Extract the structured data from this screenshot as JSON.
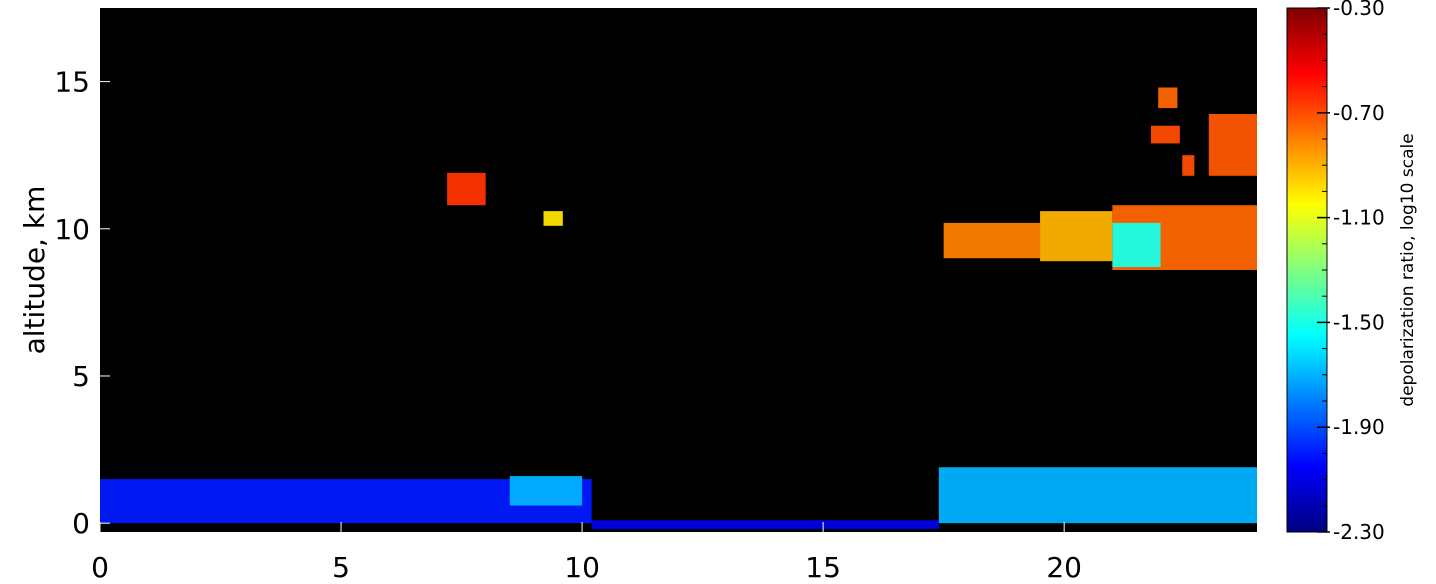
{
  "chart_data": {
    "type": "heatmap",
    "title": "",
    "xlabel": "",
    "ylabel": "altitude, km",
    "xlim": [
      0,
      24
    ],
    "ylim": [
      -0.3,
      17.5
    ],
    "x_ticks": [
      0,
      5,
      10,
      15,
      20
    ],
    "y_ticks": [
      0,
      5,
      10,
      15
    ],
    "background_color": "#000000",
    "colorbar": {
      "label": "depolarization ratio, log10 scale",
      "range": [
        -2.3,
        -0.3
      ],
      "ticks": [
        "-0.30",
        "-0.70",
        "-1.10",
        "-1.50",
        "-1.90",
        "-2.30"
      ],
      "tick_values": [
        -0.3,
        -0.7,
        -1.1,
        -1.5,
        -1.9,
        -2.3
      ],
      "colormap": "jet"
    },
    "features": [
      {
        "name": "boundary layer 0-10 h",
        "x": [
          0,
          10.2
        ],
        "y": [
          0,
          1.5
        ],
        "value": -2.0
      },
      {
        "name": "aerosol lump 8.5-10 h",
        "x": [
          8.5,
          10.0
        ],
        "y": [
          0.6,
          1.6
        ],
        "value": -1.7
      },
      {
        "name": "surface layer 10-17.4 h",
        "x": [
          10.2,
          17.4
        ],
        "y": [
          -0.2,
          0.1
        ],
        "value": -2.1
      },
      {
        "name": "boundary layer 17.4-24 h",
        "x": [
          17.4,
          24
        ],
        "y": [
          0,
          1.9
        ],
        "value": -1.7
      },
      {
        "name": "cirrus 7.2-8",
        "x": [
          7.2,
          8.0
        ],
        "y": [
          10.8,
          11.9
        ],
        "value": -0.65
      },
      {
        "name": "cirrus 9.2-9.6",
        "x": [
          9.2,
          9.6
        ],
        "y": [
          10.1,
          10.6
        ],
        "value": -1.0
      },
      {
        "name": "cloud band 17.5-19.5",
        "x": [
          17.5,
          19.5
        ],
        "y": [
          9.0,
          10.2
        ],
        "value": -0.8
      },
      {
        "name": "cloud fragments 19.5-21",
        "x": [
          19.5,
          21.0
        ],
        "y": [
          8.9,
          10.6
        ],
        "value": -0.9
      },
      {
        "name": "large cloud mass",
        "x": [
          21.0,
          24
        ],
        "y": [
          8.6,
          10.8
        ],
        "value": -0.75
      },
      {
        "name": "cloud edge low depol",
        "x": [
          21.0,
          22.0
        ],
        "y": [
          8.7,
          10.2
        ],
        "value": -1.5
      },
      {
        "name": "high cirrus 22-22.3",
        "x": [
          21.95,
          22.35
        ],
        "y": [
          14.1,
          14.8
        ],
        "value": -0.75
      },
      {
        "name": "high cirrus 21.8-22.4",
        "x": [
          21.8,
          22.4
        ],
        "y": [
          12.9,
          13.5
        ],
        "value": -0.7
      },
      {
        "name": "high cirrus 22.5-22.7",
        "x": [
          22.45,
          22.7
        ],
        "y": [
          11.8,
          12.5
        ],
        "value": -0.7
      },
      {
        "name": "high cirrus 23-24",
        "x": [
          23.0,
          24
        ],
        "y": [
          11.8,
          13.9
        ],
        "value": -0.72
      }
    ]
  }
}
